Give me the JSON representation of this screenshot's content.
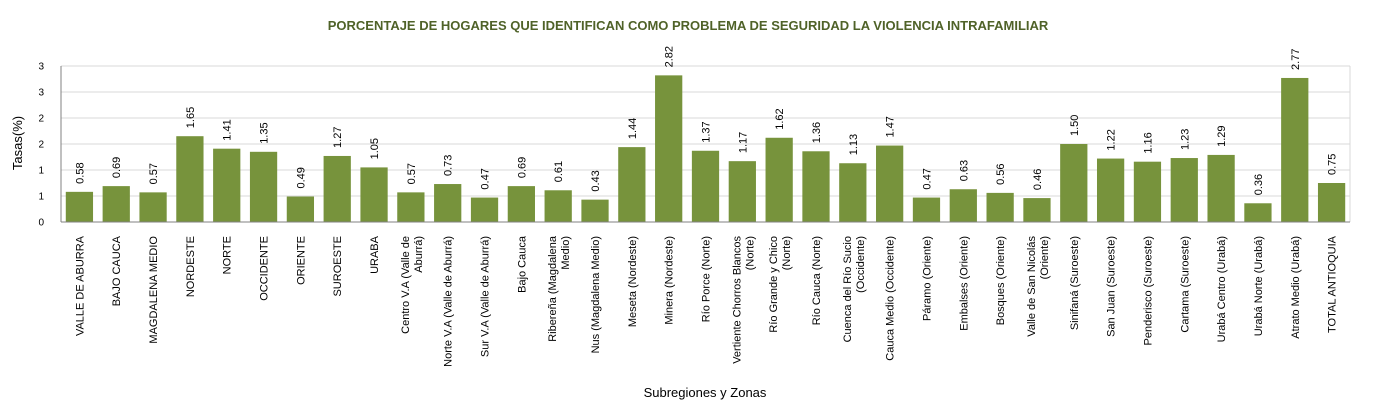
{
  "chart_data": {
    "type": "bar",
    "title": "PORCENTAJE DE HOGARES QUE IDENTIFICAN COMO PROBLEMA DE SEGURIDAD LA VIOLENCIA INTRAFAMILIAR",
    "xlabel": "Subregiones y Zonas",
    "ylabel": "Tasas(%)",
    "ylim": [
      0,
      3
    ],
    "y_ticks": [
      "0",
      "1",
      "1",
      "2",
      "2",
      "3",
      "3"
    ],
    "grid": true,
    "bar_color": "#77933c",
    "categories": [
      [
        "VALLE DE ABURRA"
      ],
      [
        "BAJO CAUCA"
      ],
      [
        "MAGDALENA MEDIO"
      ],
      [
        "NORDESTE"
      ],
      [
        "NORTE"
      ],
      [
        "OCCIDENTE"
      ],
      [
        "ORIENTE"
      ],
      [
        "SUROESTE"
      ],
      [
        "URABA"
      ],
      [
        "Centro V.A (Valle de",
        "Aburrá)"
      ],
      [
        "Norte V.A (Valle de Aburrá)"
      ],
      [
        "Sur V.A (Valle de Aburrá)"
      ],
      [
        "Bajo Cauca"
      ],
      [
        "Ribereña  (Magdalena",
        "Medio)"
      ],
      [
        "Nus  (Magdalena Medio)"
      ],
      [
        "Meseta  (Nordeste)"
      ],
      [
        "Minera  (Nordeste)"
      ],
      [
        "Río Porce    (Norte)"
      ],
      [
        "Vertiente Chorros Blancos",
        "(Norte)"
      ],
      [
        "Río Grande y Chico",
        "(Norte)"
      ],
      [
        "Río Cauca  (Norte)"
      ],
      [
        "Cuenca del Río Sucio",
        "(Occidente)"
      ],
      [
        "Cauca Medio  (Occidente)"
      ],
      [
        "Páramo   (Oriente)"
      ],
      [
        "Embalses (Oriente)"
      ],
      [
        "Bosques  (Oriente)"
      ],
      [
        "Valle de San Nicolás",
        "(Oriente)"
      ],
      [
        "Sinifaná  (Suroeste)"
      ],
      [
        "San Juan  (Suroeste)"
      ],
      [
        "Penderisco  (Suroeste)"
      ],
      [
        "Cartama  (Suroeste)"
      ],
      [
        "Urabá Centro  (Urabá)"
      ],
      [
        "Urabá Norte  (Urabá)"
      ],
      [
        "Atrato Medio  (Urabá)"
      ],
      [
        "TOTAL ANTIOQUIA"
      ]
    ],
    "values": [
      0.58,
      0.69,
      0.57,
      1.65,
      1.41,
      1.35,
      0.49,
      1.27,
      1.05,
      0.57,
      0.73,
      0.47,
      0.69,
      0.61,
      0.43,
      1.44,
      2.82,
      1.37,
      1.17,
      1.62,
      1.36,
      1.13,
      1.47,
      0.47,
      0.63,
      0.56,
      0.46,
      1.5,
      1.22,
      1.16,
      1.23,
      1.29,
      0.36,
      2.77,
      0.75
    ],
    "data_labels": [
      "0.58",
      "0.69",
      "0.57",
      "1.65",
      "1.41",
      "1.35",
      "0.49",
      "1.27",
      "1.05",
      "0.57",
      "0.73",
      "0.47",
      "0.69",
      "0.61",
      "0.43",
      "1.44",
      "2.82",
      "1.37",
      "1.17",
      "1.62",
      "1.36",
      "1.13",
      "1.47",
      "0.47",
      "0.63",
      "0.56",
      "0.46",
      "1.50",
      "1.22",
      "1.16",
      "1.23",
      "1.29",
      "0.36",
      "2.77",
      "0.75"
    ]
  }
}
